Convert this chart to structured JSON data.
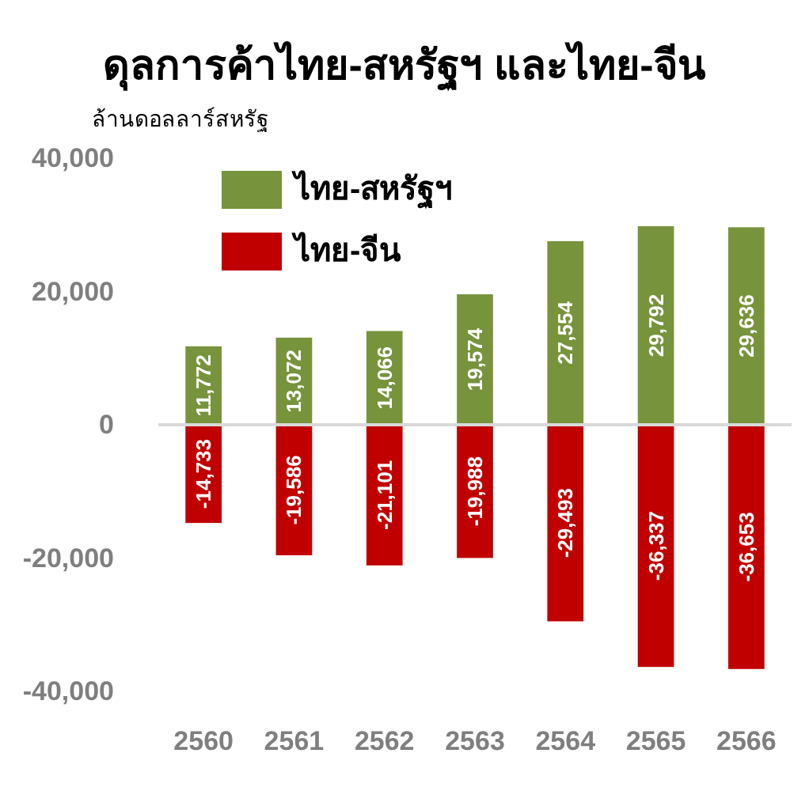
{
  "chart_data": {
    "type": "bar",
    "title": "ดุลการค้าไทย-สหรัฐฯ และไทย-จีน",
    "ylabel": "ล้านดอลลาร์สหรัฐ",
    "categories": [
      "2560",
      "2561",
      "2562",
      "2563",
      "2564",
      "2565",
      "2566"
    ],
    "series": [
      {
        "name": "ไทย-สหรัฐฯ",
        "color": "#77933c",
        "values": [
          11772,
          13072,
          14066,
          19574,
          27554,
          29792,
          29636
        ],
        "value_labels": [
          "11,772",
          "13,072",
          "14,066",
          "19,574",
          "27,554",
          "29,792",
          "29,636"
        ]
      },
      {
        "name": "ไทย-จีน",
        "color": "#c00000",
        "values": [
          -14733,
          -19586,
          -21101,
          -19988,
          -29493,
          -36337,
          -36653
        ],
        "value_labels": [
          "-14,733",
          "-19,586",
          "-21,101",
          "-19,988",
          "-29,493",
          "-36,337",
          "-36,653"
        ]
      }
    ],
    "stacked": true,
    "ylim": [
      -40000,
      40000
    ],
    "yticks": [
      {
        "value": -40000,
        "label": "-40,000"
      },
      {
        "value": -20000,
        "label": "-20,000"
      },
      0,
      {
        "value": 20000,
        "label": "20,000"
      },
      {
        "value": 40000,
        "label": "40,000"
      }
    ],
    "legend": "top left"
  }
}
